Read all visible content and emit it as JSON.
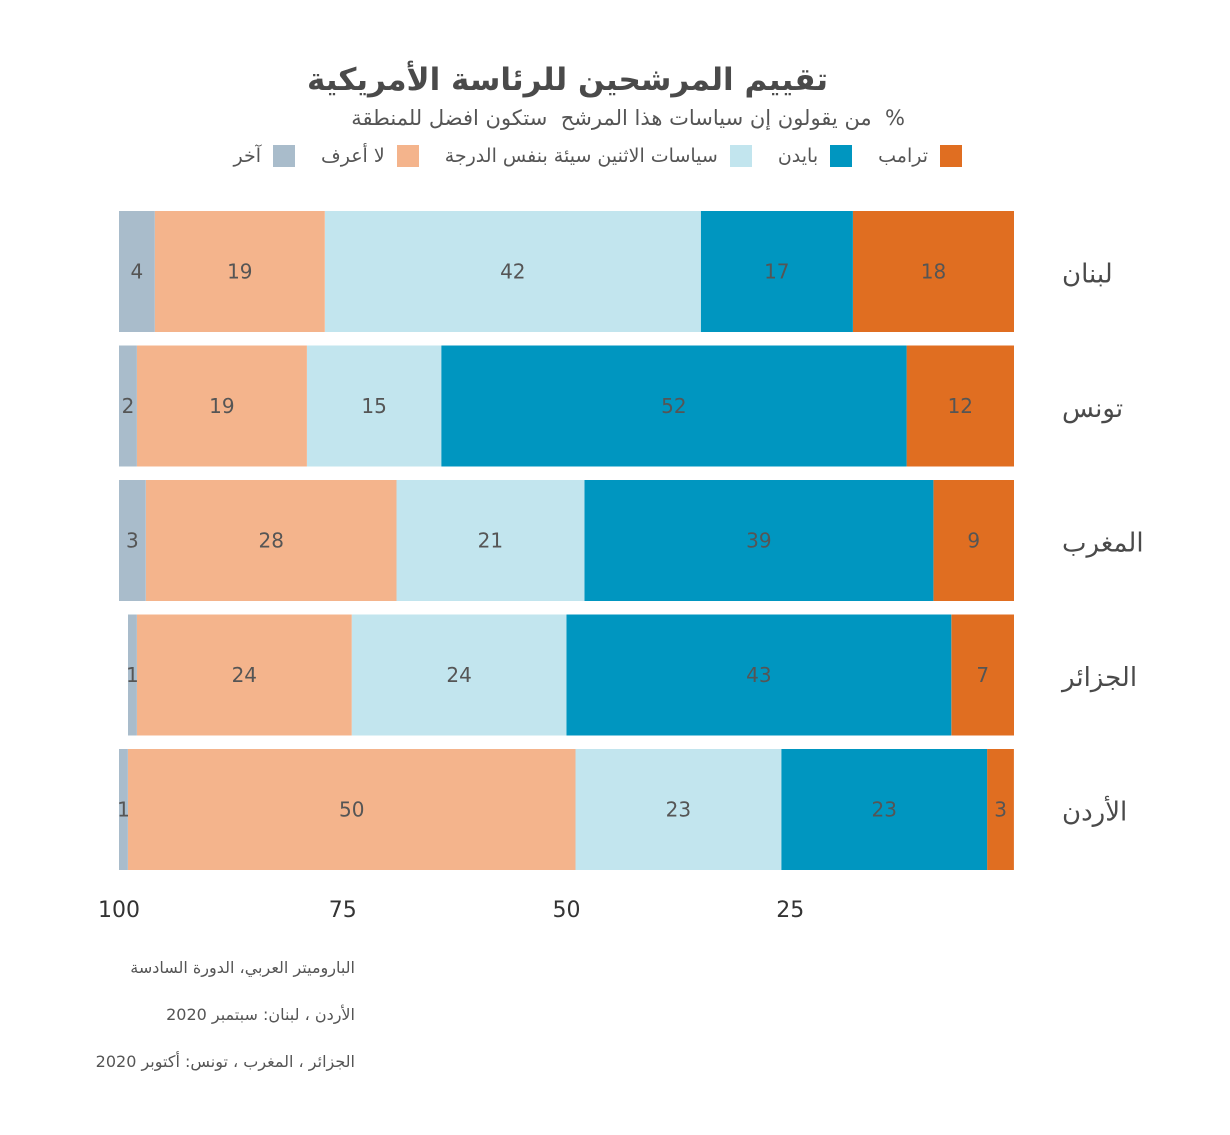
{
  "colors": {
    "trump": "#e06e21",
    "biden": "#0096c0",
    "both_bad": "#c2e5ee",
    "dont_know": "#f4b48c",
    "other": "#a9bccb"
  },
  "chart_data": {
    "type": "bar",
    "orientation": "horizontal-stacked",
    "title": "تقييم المرشحين للرئاسة الأمريكية",
    "subtitle": "%  من يقولون إن سياسات هذا المرشح  ستكون افضل للمنطقة",
    "categories": [
      "لبنان",
      "تونس",
      "المغرب",
      "الجزائر",
      "الأردن"
    ],
    "series": [
      {
        "key": "trump",
        "name": "ترامب",
        "values": [
          18,
          12,
          9,
          7,
          3
        ]
      },
      {
        "key": "biden",
        "name": "بايدن",
        "values": [
          17,
          52,
          39,
          43,
          23
        ]
      },
      {
        "key": "both_bad",
        "name": "سياسات الاثنين سيئة بنفس الدرجة",
        "values": [
          42,
          15,
          21,
          24,
          23
        ]
      },
      {
        "key": "dont_know",
        "name": "لا أعرف",
        "values": [
          19,
          19,
          28,
          24,
          50
        ]
      },
      {
        "key": "other",
        "name": "آخر",
        "values": [
          4,
          2,
          3,
          1,
          1
        ]
      }
    ],
    "x_ticks": [
      100,
      75,
      50,
      25
    ],
    "xlim": [
      0,
      100
    ],
    "x_axis_reversed": true,
    "grid": false,
    "legend_position": "top"
  },
  "notes": [
    "الباروميتر العربي، الدورة السادسة",
    "الأردن ، لبنان: سبتمبر 2020",
    "الجزائر ، المغرب ، تونس: أكتوبر 2020"
  ]
}
